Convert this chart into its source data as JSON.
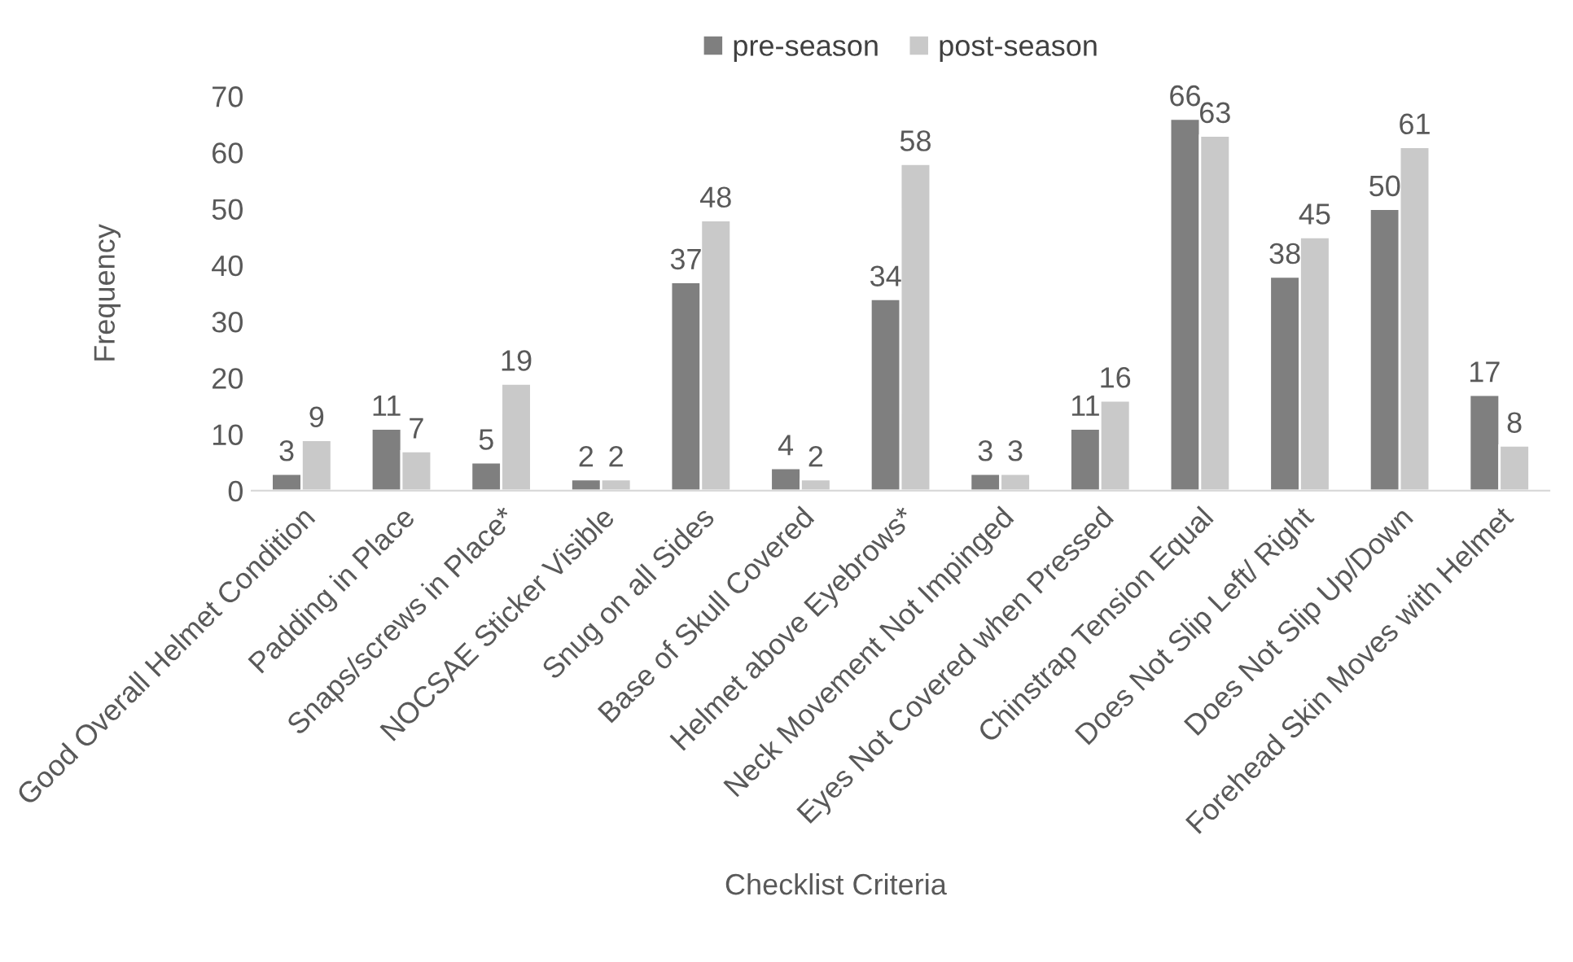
{
  "chart_data": {
    "type": "bar",
    "xlabel": "Checklist Criteria",
    "ylabel": "Frequency",
    "categories": [
      "Good Overall Helmet Condition",
      "Padding in Place",
      "Snaps/screws in Place*",
      "NOCSAE Sticker Visible",
      "Snug on all Sides",
      "Base of Skull Covered",
      "Helmet above Eyebrows*",
      "Neck Movement Not Impinged",
      "Eyes Not Covered when Pressed",
      "Chinstrap Tension Equal",
      "Does Not Slip Left/ Right",
      "Does Not Slip Up/Down",
      "Forehead Skin Moves with Helmet"
    ],
    "series": [
      {
        "name": "pre-season",
        "color": "#7f7f7f",
        "values": [
          3,
          11,
          5,
          2,
          37,
          4,
          34,
          3,
          11,
          66,
          38,
          50,
          17
        ]
      },
      {
        "name": "post-season",
        "color": "#c9c9c9",
        "values": [
          9,
          7,
          19,
          2,
          48,
          2,
          58,
          3,
          16,
          63,
          45,
          61,
          8
        ]
      }
    ],
    "ylim": [
      0,
      70
    ],
    "yticks": [
      0,
      10,
      20,
      30,
      40,
      50,
      60,
      70
    ],
    "grid": false,
    "legend": "top",
    "data_labels": true
  }
}
